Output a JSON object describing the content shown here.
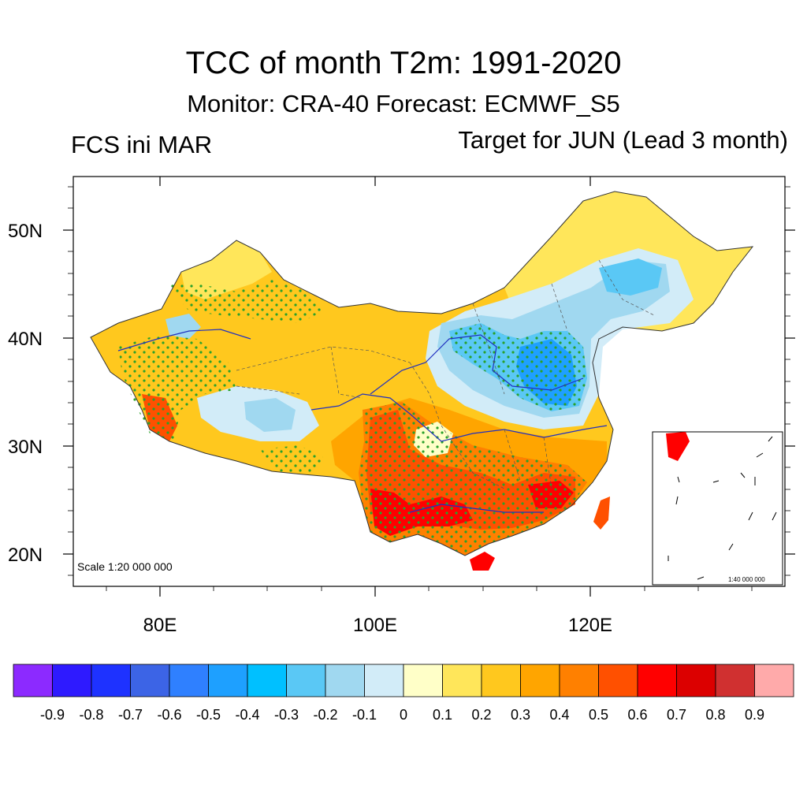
{
  "title": "TCC of month T2m: 1991-2020",
  "subtitle": "Monitor: CRA-40   Forecast: ECMWF_S5",
  "left_label": "FCS ini MAR",
  "right_label": "Target for JUN (Lead 3 month)",
  "scale_note": "Scale 1:20 000 000",
  "inset_scale_note": "1:40 000 000",
  "map": {
    "lat_ticks": [
      "50N",
      "40N",
      "30N",
      "20N"
    ],
    "lon_ticks": [
      "80E",
      "100E",
      "120E"
    ]
  },
  "colorbar": {
    "colors": [
      "#8c2aff",
      "#2e1aff",
      "#1e32ff",
      "#3c64e6",
      "#2f80ff",
      "#1ea0ff",
      "#00c0ff",
      "#5ac8f5",
      "#a0d8f0",
      "#d2ecf8",
      "#ffffc8",
      "#ffe65a",
      "#ffc81e",
      "#ffa500",
      "#ff8000",
      "#ff5000",
      "#ff0000",
      "#dc0000",
      "#d03030",
      "#ffaaaa"
    ],
    "tick_labels": [
      "-0.9",
      "-0.8",
      "-0.7",
      "-0.6",
      "-0.5",
      "-0.4",
      "-0.3",
      "-0.2",
      "-0.1",
      "0",
      "0.1",
      "0.2",
      "0.3",
      "0.4",
      "0.5",
      "0.6",
      "0.7",
      "0.8",
      "0.9"
    ]
  }
}
